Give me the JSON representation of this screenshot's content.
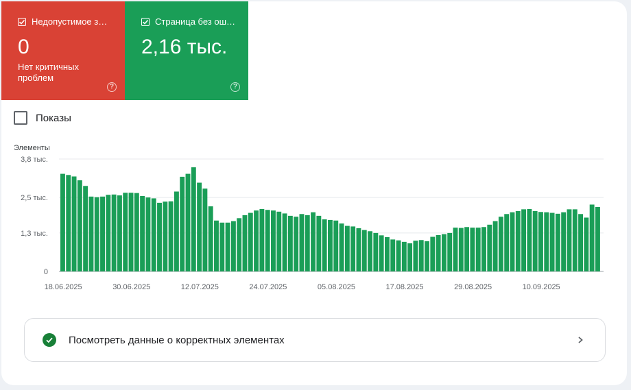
{
  "tiles": [
    {
      "title": "Недопустимое з…",
      "value": "0",
      "subtitle": "Нет критичных проблем",
      "color": "#d94235"
    },
    {
      "title": "Страница без ош…",
      "value": "2,16 тыс.",
      "subtitle": "",
      "color": "#1a9e57"
    }
  ],
  "shows_label": "Показы",
  "bottom_link": "Посмотреть данные о корректных элементах",
  "chart_data": {
    "type": "bar",
    "ylabel": "Элементы",
    "y_ticks": [
      "3,8 тыс.",
      "2,5 тыс.",
      "1,3 тыс.",
      "0"
    ],
    "y_tick_values": [
      3800,
      2500,
      1300,
      0
    ],
    "x_ticks": [
      "18.06.2025",
      "30.06.2025",
      "12.07.2025",
      "24.07.2025",
      "05.08.2025",
      "17.08.2025",
      "29.08.2025",
      "10.09.2025"
    ],
    "ylim": [
      0,
      3800
    ],
    "bar_color": "#1a9e57",
    "start_date": "18.06.2025",
    "values": [
      3300,
      3260,
      3210,
      3080,
      2890,
      2530,
      2510,
      2530,
      2590,
      2600,
      2570,
      2660,
      2660,
      2650,
      2550,
      2500,
      2470,
      2320,
      2360,
      2370,
      2700,
      3200,
      3300,
      3520,
      3000,
      2800,
      2200,
      1720,
      1650,
      1650,
      1700,
      1800,
      1900,
      1980,
      2060,
      2110,
      2080,
      2060,
      2020,
      1960,
      1880,
      1850,
      1940,
      1900,
      2000,
      1880,
      1760,
      1740,
      1720,
      1620,
      1540,
      1520,
      1460,
      1400,
      1360,
      1300,
      1220,
      1160,
      1080,
      1050,
      1000,
      950,
      1040,
      1060,
      1020,
      1170,
      1230,
      1260,
      1300,
      1480,
      1470,
      1500,
      1480,
      1480,
      1500,
      1580,
      1700,
      1850,
      1940,
      2000,
      2040,
      2100,
      2110,
      2040,
      2010,
      2000,
      1980,
      1950,
      2000,
      2100,
      2100,
      1940,
      1820,
      2260,
      2180
    ]
  }
}
